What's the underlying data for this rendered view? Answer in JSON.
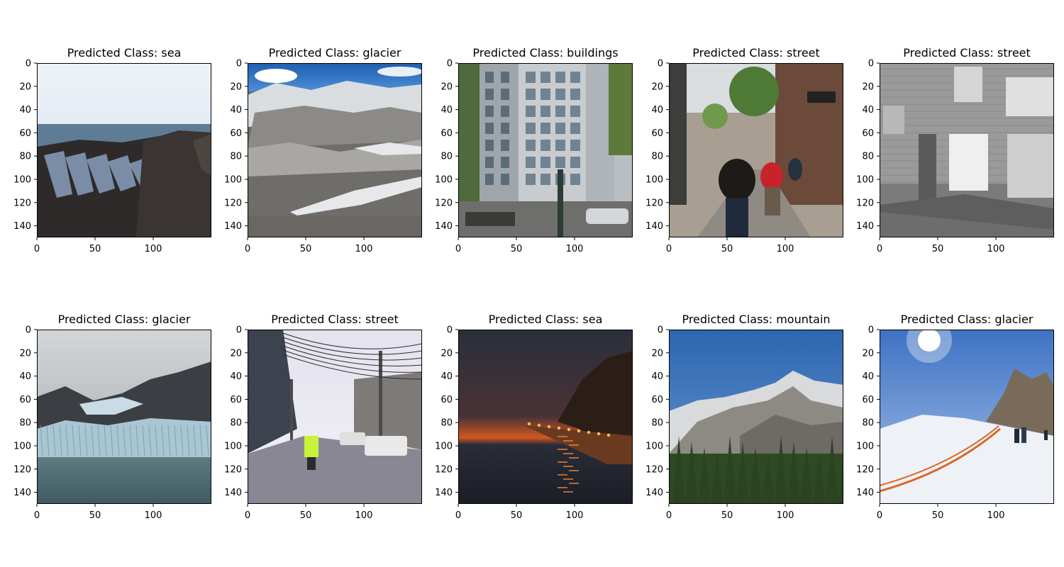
{
  "panels": [
    {
      "title": "Predicted Class: sea",
      "scene": "sea-rocks",
      "image_label": "rocky shoreline with tide pools"
    },
    {
      "title": "Predicted Class: glacier",
      "scene": "glacier-snow",
      "image_label": "snowy rocky glacier slope"
    },
    {
      "title": "Predicted Class: buildings",
      "scene": "buildings",
      "image_label": "city street facades"
    },
    {
      "title": "Predicted Class: street",
      "scene": "street-pedestrians",
      "image_label": "pedestrian shopping street"
    },
    {
      "title": "Predicted Class: street",
      "scene": "street-bw",
      "image_label": "black and white brick building"
    },
    {
      "title": "Predicted Class: glacier",
      "scene": "glacier-bay",
      "image_label": "glacier meeting the sea"
    },
    {
      "title": "Predicted Class: street",
      "scene": "street-wires",
      "image_label": "street with power lines"
    },
    {
      "title": "Predicted Class: sea",
      "scene": "sea-sunset",
      "image_label": "promenade at sunset by the sea"
    },
    {
      "title": "Predicted Class: mountain",
      "scene": "mountain",
      "image_label": "snowy mountain with pine trees"
    },
    {
      "title": "Predicted Class: glacier",
      "scene": "glacier-ski",
      "image_label": "snowfield with hikers under sun"
    }
  ],
  "axes": {
    "y_ticks": [
      0,
      20,
      40,
      60,
      80,
      100,
      120,
      140
    ],
    "x_ticks": [
      0,
      50,
      100
    ],
    "range": [
      0,
      150
    ]
  }
}
